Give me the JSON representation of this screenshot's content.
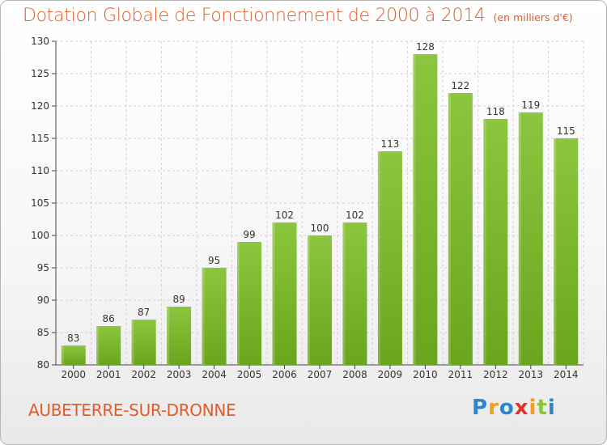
{
  "chart_data": {
    "type": "bar",
    "title": "Dotation Globale de Fonctionnement de 2000 à 2014",
    "subtitle": "(en milliers d'€)",
    "xlabel": "",
    "ylabel": "",
    "categories": [
      "2000",
      "2001",
      "2002",
      "2003",
      "2004",
      "2005",
      "2006",
      "2007",
      "2008",
      "2009",
      "2010",
      "2011",
      "2012",
      "2013",
      "2014"
    ],
    "values": [
      83,
      86,
      87,
      89,
      95,
      99,
      102,
      100,
      102,
      113,
      128,
      122,
      118,
      119,
      115
    ],
    "ylim": [
      80,
      130
    ],
    "yticks": [
      80,
      85,
      90,
      95,
      100,
      105,
      110,
      115,
      120,
      125,
      130
    ],
    "grid": true,
    "legend": "none",
    "bar_color": "#8cc63f",
    "bar_color_dark": "#6aa51e"
  },
  "footer": {
    "city": "AUBETERRE-SUR-DRONNE"
  },
  "logo": {
    "text": "Proxiti",
    "letters": [
      {
        "char": "P",
        "color": "#2e86c8"
      },
      {
        "char": "r",
        "color": "#f39c1a"
      },
      {
        "char": "o",
        "color": "#2e86c8"
      },
      {
        "char": "x",
        "color": "#e0332f"
      },
      {
        "char": "i",
        "color": "#f39c1a"
      },
      {
        "char": "t",
        "color": "#8cc63f"
      },
      {
        "char": "i",
        "color": "#2e86c8"
      }
    ]
  }
}
